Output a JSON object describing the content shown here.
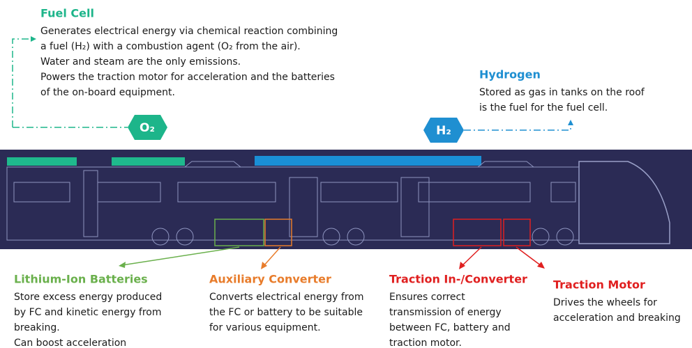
{
  "fuel_cell": {
    "title": "Fuel Cell",
    "lines": [
      "Generates electrical energy via chemical reaction combining",
      "a fuel (H₂) with a combustion agent (O₂ from the air).",
      "Water and steam are the only emissions.",
      "Powers the traction motor for acceleration and the batteries",
      "of the on-board equipment."
    ]
  },
  "hydrogen": {
    "title": "Hydrogen",
    "lines": [
      "Stored as gas in tanks on the roof",
      "is the fuel for the fuel cell."
    ]
  },
  "badges": {
    "o2": "O₂",
    "h2": "H₂"
  },
  "components": [
    {
      "title": "Lithium-Ion Batteries",
      "lines": [
        "Store excess energy produced",
        "by FC and kinetic energy from",
        "breaking.",
        "Can boost acceleration"
      ]
    },
    {
      "title": "Auxiliary Converter",
      "lines": [
        "Converts electrical energy from",
        "the FC or battery to be suitable",
        "for various equipment."
      ]
    },
    {
      "title": "Traction In-/Converter",
      "lines": [
        "Ensures correct",
        "transmission of energy",
        "between FC, battery and",
        "traction motor."
      ]
    },
    {
      "title": "Traction Motor",
      "lines": [
        "Drives the wheels for",
        "acceleration and breaking"
      ]
    }
  ]
}
